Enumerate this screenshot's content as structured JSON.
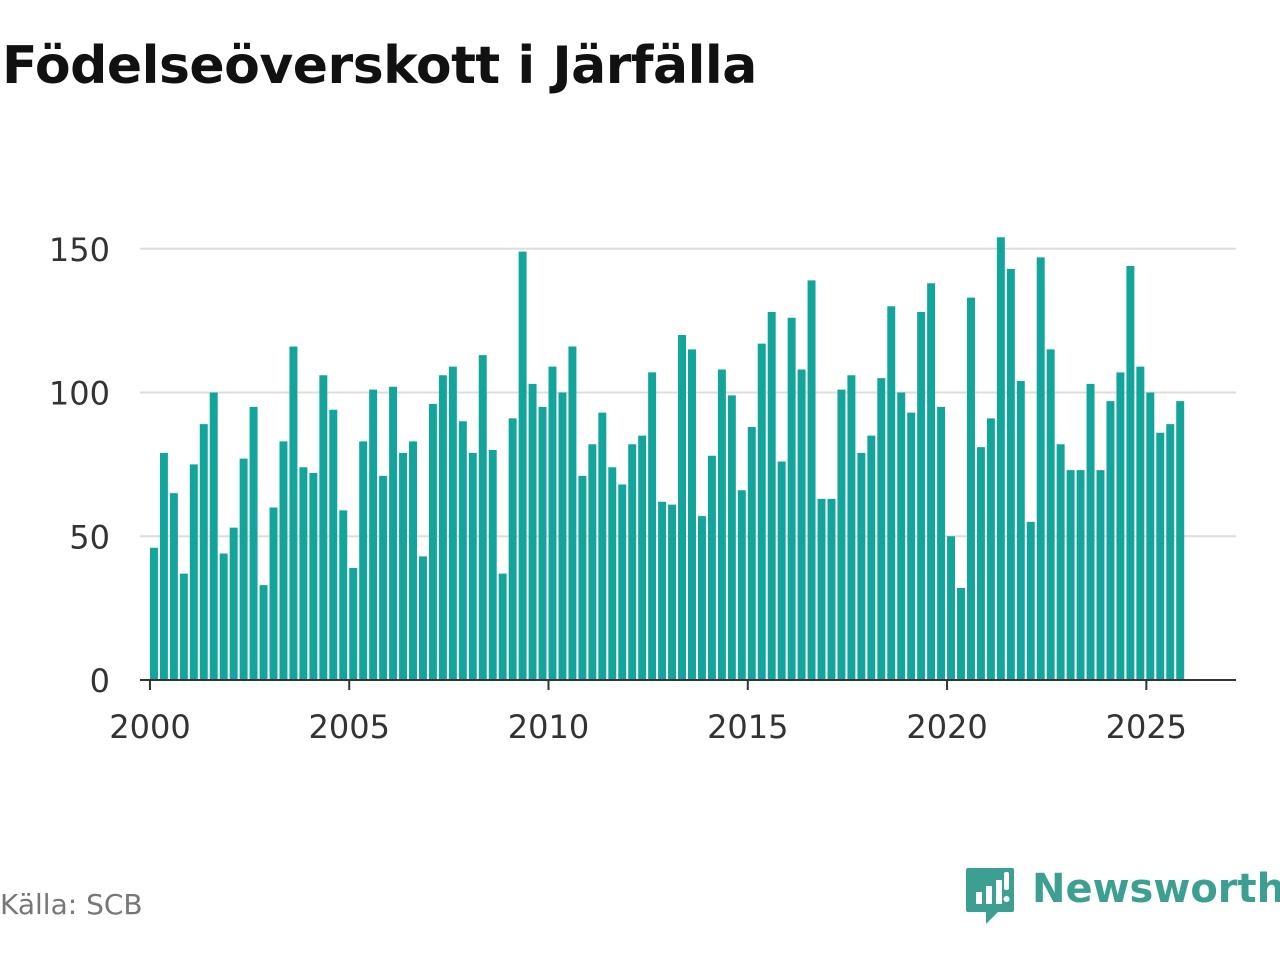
{
  "title": "Födelseöverskott i Järfälla",
  "source": "Källa: SCB",
  "brand": {
    "name": "Newsworthy",
    "icon": "newsworthy-logo-icon"
  },
  "colors": {
    "bar": "#13a59b",
    "grid": "#dddddd",
    "axis": "#333333",
    "brand": "#3d9f92"
  },
  "chart_data": {
    "type": "bar",
    "title": "Födelseöverskott i Järfälla",
    "xlabel": "",
    "ylabel": "",
    "ylim": [
      0,
      160
    ],
    "yticks": [
      0,
      50,
      100,
      150
    ],
    "xlim": [
      1999.75,
      2027.25
    ],
    "xticks": [
      2000,
      2005,
      2010,
      2015,
      2020,
      2025
    ],
    "xtick_labels": [
      "2000",
      "2005",
      "2010",
      "2015",
      "2020",
      "2025"
    ],
    "grid": true,
    "start": 2000,
    "step": 0.25,
    "values": [
      46,
      79,
      65,
      37,
      75,
      89,
      100,
      44,
      53,
      77,
      95,
      33,
      60,
      83,
      116,
      74,
      72,
      106,
      94,
      59,
      39,
      83,
      101,
      71,
      102,
      79,
      83,
      43,
      96,
      106,
      109,
      90,
      79,
      113,
      80,
      37,
      91,
      149,
      103,
      95,
      109,
      100,
      116,
      71,
      82,
      93,
      74,
      68,
      82,
      85,
      107,
      62,
      61,
      120,
      115,
      57,
      78,
      108,
      99,
      66,
      88,
      117,
      128,
      76,
      126,
      108,
      139,
      63,
      63,
      101,
      106,
      79,
      85,
      105,
      130,
      100,
      93,
      128,
      138,
      95,
      50,
      32,
      133,
      81,
      91,
      154,
      143,
      104,
      55,
      147,
      115,
      82,
      73,
      73,
      103,
      73,
      97,
      107,
      144,
      109,
      100,
      86,
      89,
      97
    ]
  }
}
